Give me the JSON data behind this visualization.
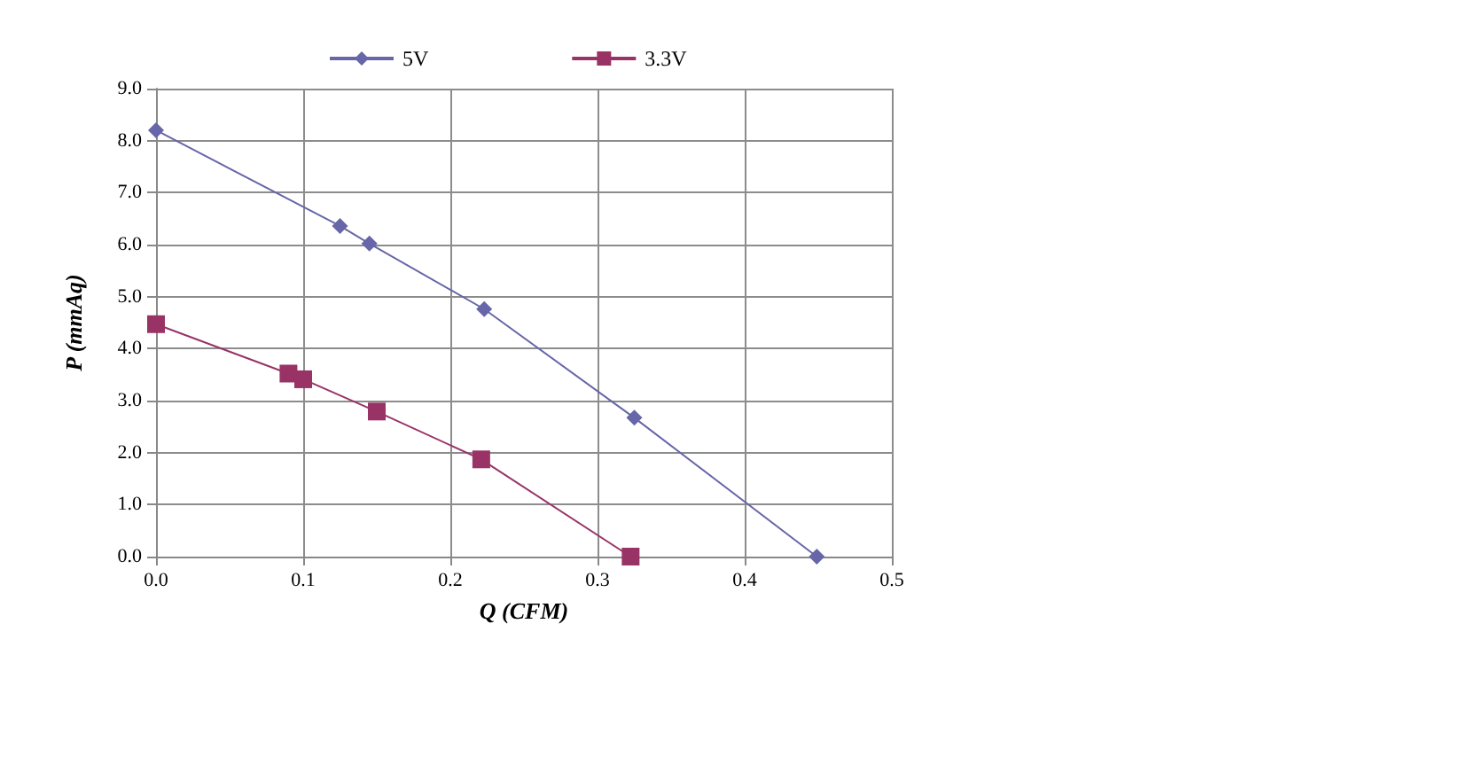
{
  "chart_data": {
    "type": "line",
    "xlabel": "Q (CFM)",
    "ylabel": "P (mmAq)",
    "xlim": [
      0,
      0.5
    ],
    "xticks": [
      {
        "value": 0,
        "label": "0.0"
      },
      0.1,
      0.2,
      0.3,
      0.4,
      0.5
    ],
    "ylim": [
      0,
      9
    ],
    "yticks": [
      {
        "value": 0,
        "label": "0.0"
      },
      {
        "value": 1,
        "label": "1.0"
      },
      {
        "value": 2,
        "label": "2.0"
      },
      {
        "value": 3,
        "label": "3.0"
      },
      {
        "value": 4,
        "label": "4.0"
      },
      {
        "value": 5,
        "label": "5.0"
      },
      {
        "value": 6,
        "label": "6.0"
      },
      {
        "value": 7,
        "label": "7.0"
      },
      {
        "value": 8,
        "label": "8.0"
      },
      {
        "value": 9,
        "label": "9.0"
      }
    ],
    "grid": true,
    "legend": "top",
    "series": [
      {
        "name": "5V",
        "color": "#6666a8",
        "marker": "diamond",
        "x": [
          0,
          0.125,
          0.145,
          0.223,
          0.325,
          0.449
        ],
        "values": [
          8.2,
          6.36,
          6.02,
          4.76,
          2.67,
          0
        ]
      },
      {
        "name": "3.3V",
        "color": "#993366",
        "marker": "square",
        "x": [
          0,
          0.09,
          0.1,
          0.15,
          0.221,
          0.3225
        ],
        "values": [
          4.47,
          3.52,
          3.41,
          2.79,
          1.87,
          0
        ]
      }
    ]
  }
}
